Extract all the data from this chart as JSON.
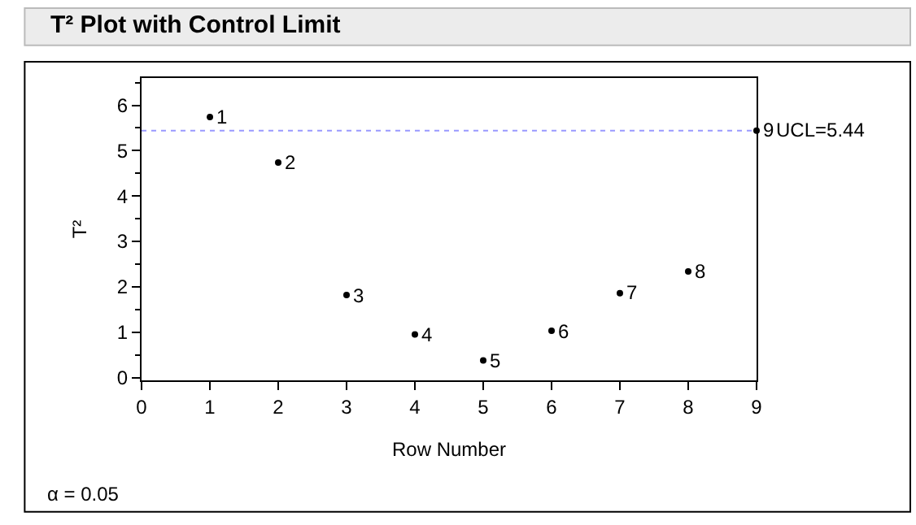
{
  "chart_data": {
    "type": "scatter",
    "title": "T² Plot with Control Limit",
    "xlabel": "Row Number",
    "ylabel": "T²",
    "x": [
      1,
      2,
      3,
      4,
      5,
      6,
      7,
      8,
      9
    ],
    "series": [
      {
        "color": "#000000",
        "values": [
          5.74,
          4.74,
          1.82,
          0.95,
          0.38,
          1.03,
          1.86,
          2.34,
          5.44
        ]
      }
    ],
    "xlim": [
      0,
      9
    ],
    "xticks": [
      0,
      1,
      2,
      3,
      4,
      5,
      6,
      7,
      8,
      9
    ],
    "ylim": [
      -0.06,
      6.6
    ],
    "yticks": [
      0,
      1,
      2,
      3,
      4,
      5,
      6
    ],
    "ref_lines": [
      {
        "axis": "y",
        "value": 5.44,
        "label": "UCL=5.44",
        "color": "#9999ff",
        "line_style": "dotted"
      }
    ],
    "annotations": [
      {
        "text": "1",
        "x": 1,
        "y": 5.74
      },
      {
        "text": "2",
        "x": 2,
        "y": 4.74
      },
      {
        "text": "3",
        "x": 3,
        "y": 1.82
      },
      {
        "text": "4",
        "x": 4,
        "y": 0.95
      },
      {
        "text": "5",
        "x": 5,
        "y": 0.38
      },
      {
        "text": "6",
        "x": 6,
        "y": 1.03
      },
      {
        "text": "7",
        "x": 7,
        "y": 1.86
      },
      {
        "text": "8",
        "x": 8,
        "y": 2.34
      },
      {
        "text": "9",
        "x": 9,
        "y": 5.44
      },
      "α = 0.05"
    ],
    "marker": "circle"
  }
}
